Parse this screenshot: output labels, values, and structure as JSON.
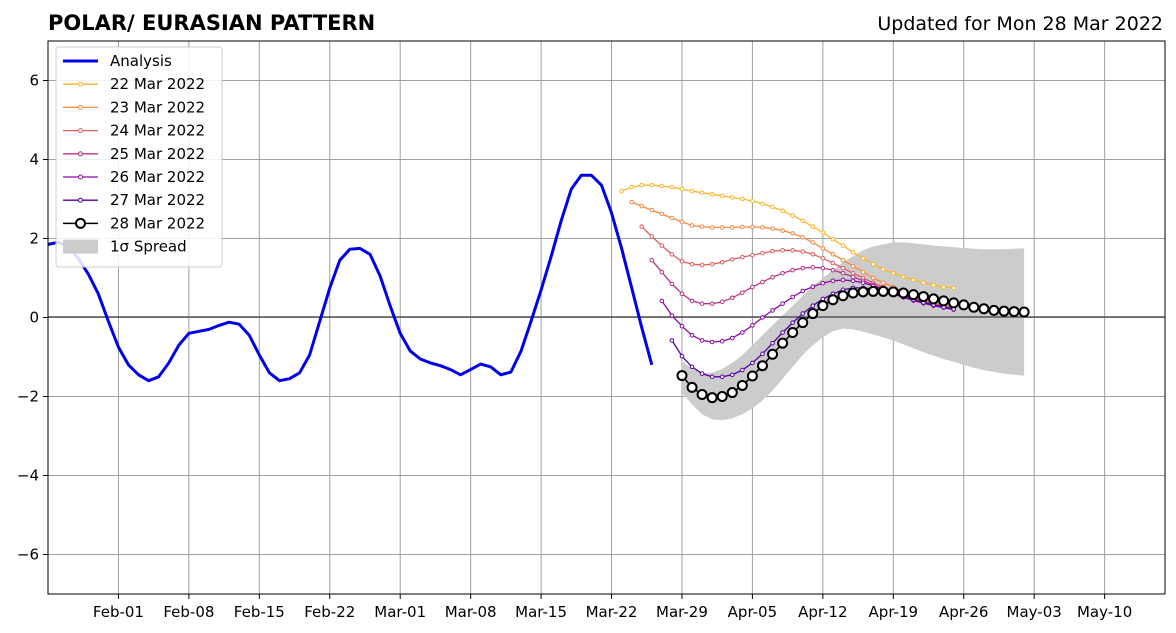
{
  "chart_data": {
    "type": "line",
    "title": "POLAR/ EURASIAN  PATTERN",
    "updated": "Updated for Mon 28 Mar 2022",
    "x_start_date": "2022-01-28",
    "x_range_dates": [
      "2022-01-25",
      "2022-05-16"
    ],
    "ylim": [
      -7,
      7
    ],
    "yticks": [
      -6,
      -4,
      -2,
      0,
      2,
      4,
      6
    ],
    "ytick_labels": [
      "−6",
      "−4",
      "−2",
      "0",
      "2",
      "4",
      "6"
    ],
    "xticks": [
      {
        "date": "2022-02-01",
        "label": "Feb-01"
      },
      {
        "date": "2022-02-08",
        "label": "Feb-08"
      },
      {
        "date": "2022-02-15",
        "label": "Feb-15"
      },
      {
        "date": "2022-02-22",
        "label": "Feb-22"
      },
      {
        "date": "2022-03-01",
        "label": "Mar-01"
      },
      {
        "date": "2022-03-08",
        "label": "Mar-08"
      },
      {
        "date": "2022-03-15",
        "label": "Mar-15"
      },
      {
        "date": "2022-03-22",
        "label": "Mar-22"
      },
      {
        "date": "2022-03-29",
        "label": "Mar-29"
      },
      {
        "date": "2022-04-05",
        "label": "Apr-05"
      },
      {
        "date": "2022-04-12",
        "label": "Apr-12"
      },
      {
        "date": "2022-04-19",
        "label": "Apr-19"
      },
      {
        "date": "2022-04-26",
        "label": "Apr-26"
      },
      {
        "date": "2022-05-03",
        "label": "May-03"
      },
      {
        "date": "2022-05-10",
        "label": "May-10"
      }
    ],
    "grid": true,
    "legend_position": "top-left",
    "analysis": {
      "name": "Analysis",
      "color": "#0000ee",
      "start": "2022-01-25",
      "values": [
        1.85,
        1.9,
        1.8,
        1.5,
        1.1,
        0.6,
        -0.1,
        -0.75,
        -1.2,
        -1.45,
        -1.6,
        -1.5,
        -1.15,
        -0.7,
        -0.4,
        -0.35,
        -0.3,
        -0.2,
        -0.12,
        -0.17,
        -0.45,
        -0.95,
        -1.4,
        -1.6,
        -1.55,
        -1.4,
        -0.95,
        -0.1,
        0.75,
        1.45,
        1.73,
        1.75,
        1.6,
        1.05,
        0.3,
        -0.4,
        -0.85,
        -1.05,
        -1.15,
        -1.22,
        -1.32,
        -1.45,
        -1.32,
        -1.18,
        -1.25,
        -1.45,
        -1.38,
        -0.85,
        -0.1,
        0.7,
        1.55,
        2.45,
        3.25,
        3.6,
        3.6,
        3.35,
        2.65,
        1.75,
        0.75,
        -0.25,
        -1.2
      ]
    },
    "forecasts": [
      {
        "name": "22 Mar 2022",
        "color": "#fbb52a",
        "start": "2022-03-23",
        "values": [
          3.2,
          3.3,
          3.35,
          3.35,
          3.33,
          3.3,
          3.25,
          3.2,
          3.16,
          3.12,
          3.08,
          3.04,
          3.0,
          2.95,
          2.88,
          2.8,
          2.7,
          2.58,
          2.45,
          2.3,
          2.15,
          1.98,
          1.82,
          1.65,
          1.5,
          1.35,
          1.22,
          1.12,
          1.03,
          0.95,
          0.88,
          0.82,
          0.77,
          0.75
        ]
      },
      {
        "name": "23 Mar 2022",
        "color": "#f48a41",
        "start": "2022-03-24",
        "values": [
          2.92,
          2.82,
          2.72,
          2.62,
          2.52,
          2.42,
          2.33,
          2.3,
          2.28,
          2.28,
          2.28,
          2.29,
          2.29,
          2.28,
          2.25,
          2.2,
          2.13,
          2.03,
          1.9,
          1.75,
          1.6,
          1.45,
          1.3,
          1.15,
          1.0,
          0.88,
          0.77,
          0.67,
          0.58,
          0.5,
          0.43,
          0.37,
          0.31
        ]
      },
      {
        "name": "24 Mar 2022",
        "color": "#dd5f64",
        "start": "2022-03-25",
        "values": [
          2.3,
          2.05,
          1.82,
          1.6,
          1.42,
          1.35,
          1.33,
          1.35,
          1.4,
          1.47,
          1.53,
          1.58,
          1.63,
          1.68,
          1.7,
          1.7,
          1.67,
          1.6,
          1.5,
          1.38,
          1.25,
          1.12,
          1.0,
          0.88,
          0.77,
          0.67,
          0.58,
          0.5,
          0.43,
          0.36,
          0.3,
          0.25
        ]
      },
      {
        "name": "25 Mar 2022",
        "color": "#b83289",
        "start": "2022-03-26",
        "values": [
          1.45,
          1.15,
          0.85,
          0.6,
          0.42,
          0.35,
          0.35,
          0.4,
          0.5,
          0.63,
          0.77,
          0.9,
          1.02,
          1.12,
          1.2,
          1.25,
          1.27,
          1.25,
          1.2,
          1.12,
          1.03,
          0.93,
          0.83,
          0.73,
          0.63,
          0.55,
          0.47,
          0.4,
          0.33,
          0.27,
          0.22
        ]
      },
      {
        "name": "26 Mar 2022",
        "color": "#8b0aa5",
        "start": "2022-03-27",
        "values": [
          0.42,
          0.05,
          -0.22,
          -0.45,
          -0.58,
          -0.62,
          -0.6,
          -0.52,
          -0.38,
          -0.2,
          0.0,
          0.18,
          0.35,
          0.52,
          0.67,
          0.78,
          0.87,
          0.93,
          0.95,
          0.93,
          0.88,
          0.8,
          0.7,
          0.6,
          0.51,
          0.43,
          0.36,
          0.3,
          0.25,
          0.2
        ]
      },
      {
        "name": "27 Mar 2022",
        "color": "#5302a3",
        "start": "2022-03-28",
        "values": [
          -0.58,
          -0.98,
          -1.25,
          -1.42,
          -1.5,
          -1.5,
          -1.45,
          -1.33,
          -1.15,
          -0.92,
          -0.65,
          -0.38,
          -0.13,
          0.1,
          0.3,
          0.47,
          0.6,
          0.7,
          0.75,
          0.75,
          0.72,
          0.67,
          0.6,
          0.52,
          0.45,
          0.38,
          0.32,
          0.26,
          0.21
        ]
      },
      {
        "name": "28 Mar 2022",
        "color": "#000000",
        "start": "2022-03-29",
        "values": [
          -1.47,
          -1.77,
          -1.95,
          -2.03,
          -2.0,
          -1.9,
          -1.72,
          -1.48,
          -1.22,
          -0.93,
          -0.65,
          -0.38,
          -0.13,
          0.1,
          0.3,
          0.45,
          0.55,
          0.62,
          0.65,
          0.66,
          0.66,
          0.65,
          0.62,
          0.58,
          0.53,
          0.47,
          0.42,
          0.37,
          0.32,
          0.26,
          0.22,
          0.18,
          0.16,
          0.15,
          0.14
        ]
      }
    ],
    "spread": {
      "name": "1σ Spread",
      "color": "#cccccc",
      "start": "2022-03-29",
      "upper": [
        -1.1,
        -1.3,
        -1.4,
        -1.4,
        -1.3,
        -1.15,
        -0.95,
        -0.7,
        -0.45,
        -0.2,
        0.05,
        0.3,
        0.55,
        0.8,
        1.0,
        1.2,
        1.4,
        1.55,
        1.7,
        1.8,
        1.85,
        1.9,
        1.9,
        1.88,
        1.85,
        1.82,
        1.8,
        1.78,
        1.76,
        1.74,
        1.73,
        1.73,
        1.73,
        1.74,
        1.75
      ],
      "lower": [
        -1.9,
        -2.2,
        -2.45,
        -2.58,
        -2.6,
        -2.55,
        -2.45,
        -2.3,
        -2.1,
        -1.85,
        -1.55,
        -1.25,
        -0.95,
        -0.7,
        -0.5,
        -0.35,
        -0.28,
        -0.3,
        -0.36,
        -0.43,
        -0.5,
        -0.58,
        -0.68,
        -0.78,
        -0.88,
        -0.97,
        -1.05,
        -1.12,
        -1.2,
        -1.27,
        -1.33,
        -1.38,
        -1.42,
        -1.45,
        -1.47
      ]
    }
  }
}
